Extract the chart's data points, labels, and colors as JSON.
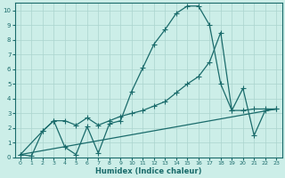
{
  "xlabel": "Humidex (Indice chaleur)",
  "xlim": [
    -0.5,
    23.5
  ],
  "ylim": [
    0,
    10.5
  ],
  "xticks": [
    0,
    1,
    2,
    3,
    4,
    5,
    6,
    7,
    8,
    9,
    10,
    11,
    12,
    13,
    14,
    15,
    16,
    17,
    18,
    19,
    20,
    21,
    22,
    23
  ],
  "yticks": [
    0,
    1,
    2,
    3,
    4,
    5,
    6,
    7,
    8,
    9,
    10
  ],
  "bg_color": "#cceee8",
  "grid_color": "#aad4ce",
  "line_color": "#1a6b6b",
  "series1_x": [
    0,
    1,
    2,
    3,
    4,
    5,
    6,
    7,
    8,
    9,
    10,
    11,
    12,
    13,
    14,
    15,
    16,
    17,
    18,
    19,
    20,
    21,
    22,
    23
  ],
  "series1_y": [
    0.2,
    0.1,
    1.8,
    2.5,
    0.7,
    0.2,
    2.1,
    0.3,
    2.3,
    2.5,
    4.5,
    6.1,
    7.7,
    8.7,
    9.8,
    10.3,
    10.3,
    9.0,
    5.0,
    3.2,
    4.7,
    1.5,
    3.2,
    3.3
  ],
  "series2_x": [
    0,
    2,
    3,
    4,
    5,
    6,
    7,
    8,
    9,
    10,
    11,
    12,
    13,
    14,
    15,
    16,
    17,
    18,
    19,
    20,
    21,
    22,
    23
  ],
  "series2_y": [
    0.2,
    1.8,
    2.5,
    2.5,
    2.2,
    2.7,
    2.2,
    2.5,
    2.8,
    3.0,
    3.2,
    3.5,
    3.8,
    4.4,
    5.0,
    5.5,
    6.5,
    8.5,
    3.2,
    3.2,
    3.3,
    3.3,
    3.3
  ],
  "series3_x": [
    0,
    23
  ],
  "series3_y": [
    0.2,
    3.3
  ],
  "marker_size": 2.5,
  "linewidth": 0.9
}
